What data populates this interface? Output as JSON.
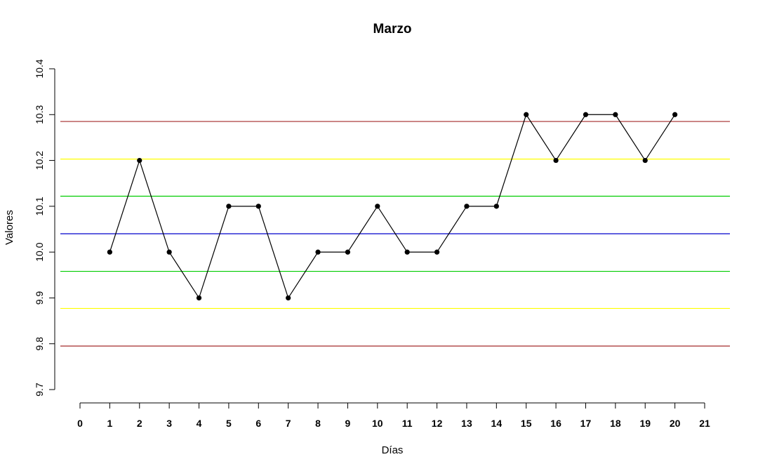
{
  "chart_data": {
    "type": "line",
    "title": "Marzo",
    "xlabel": "Días",
    "ylabel": "Valores",
    "xlim": [
      0,
      21
    ],
    "ylim": [
      9.7,
      10.4
    ],
    "x_ticks": [
      "0",
      "1",
      "2",
      "3",
      "4",
      "5",
      "6",
      "7",
      "8",
      "9",
      "10",
      "11",
      "12",
      "13",
      "14",
      "15",
      "16",
      "17",
      "18",
      "19",
      "20",
      "21"
    ],
    "y_ticks": [
      "9.7",
      "9.8",
      "9.9",
      "10.0",
      "10.1",
      "10.2",
      "10.3",
      "10.4"
    ],
    "series": [
      {
        "x": [
          1,
          2,
          3,
          4,
          5,
          6,
          7,
          8,
          9,
          10,
          11,
          12,
          13,
          14,
          15,
          16,
          17,
          18,
          19,
          20
        ],
        "values": [
          10.0,
          10.2,
          10.0,
          9.9,
          10.1,
          10.1,
          9.9,
          10.0,
          10.0,
          10.1,
          10.0,
          10.0,
          10.1,
          10.1,
          10.3,
          10.2,
          10.3,
          10.3,
          10.2,
          10.3
        ],
        "color": "#000000"
      }
    ],
    "hlines": [
      {
        "value": 10.285,
        "color": "#a52a2a"
      },
      {
        "value": 10.203,
        "color": "#ffff00"
      },
      {
        "value": 10.122,
        "color": "#00cc00"
      },
      {
        "value": 10.04,
        "color": "#0000cc"
      },
      {
        "value": 9.958,
        "color": "#00cc00"
      },
      {
        "value": 9.877,
        "color": "#ffff00"
      },
      {
        "value": 9.795,
        "color": "#a52a2a"
      }
    ],
    "grid": false
  }
}
